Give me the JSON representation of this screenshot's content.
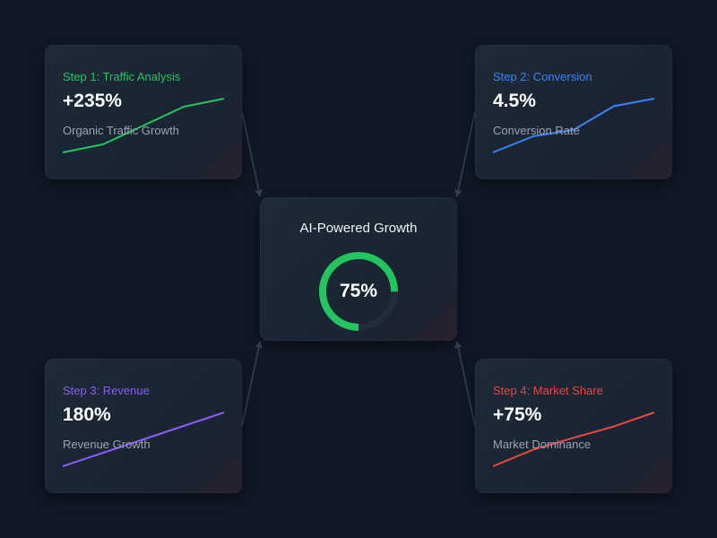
{
  "center": {
    "title": "AI-Powered Growth",
    "gauge_label": "75%",
    "gauge_fraction": 0.75,
    "gauge_color": "#22c55e"
  },
  "steps": [
    {
      "label": "Step 1: Traffic Analysis",
      "value": "+235%",
      "caption": "Organic Traffic Growth",
      "color": "#22c55e",
      "trend": [
        0,
        0.15,
        0.5,
        0.85,
        1
      ]
    },
    {
      "label": "Step 2: Conversion",
      "value": "4.5%",
      "caption": "Conversion Rate",
      "color": "#3b82f6",
      "trend": [
        0,
        0.3,
        0.42,
        0.86,
        1
      ]
    },
    {
      "label": "Step 3: Revenue",
      "value": "180%",
      "caption": "Revenue Growth",
      "color": "#8b5cf6",
      "trend": [
        0,
        0.25,
        0.5,
        0.75,
        1
      ]
    },
    {
      "label": "Step 4: Market Share",
      "value": "+75%",
      "caption": "Market Dominance",
      "color": "#ef4444",
      "trend": [
        0,
        0.31,
        0.53,
        0.74,
        1
      ]
    }
  ],
  "connector_color": "#374151"
}
